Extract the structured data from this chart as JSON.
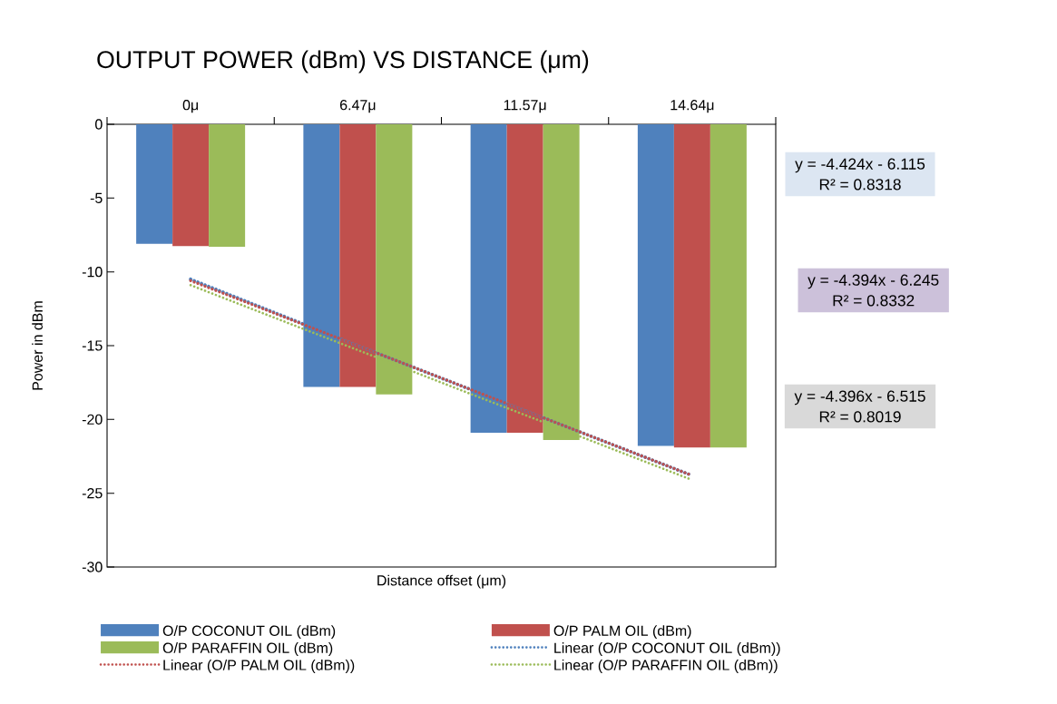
{
  "chart_data": {
    "type": "bar",
    "title": "OUTPUT POWER (dBm) VS DISTANCE (μm)",
    "xlabel": "Distance offset (μm)",
    "ylabel": "Power in dBm",
    "categories": [
      "0μ",
      "6.47μ",
      "11.57μ",
      "14.64μ"
    ],
    "series": [
      {
        "name": "O/P COCONUT OIL (dBm)",
        "color": "#4f81bd",
        "values": [
          -8.1,
          -17.8,
          -20.9,
          -21.8
        ]
      },
      {
        "name": "O/P PALM OIL (dBm)",
        "color": "#c0504d",
        "values": [
          -8.25,
          -17.8,
          -20.9,
          -21.9
        ]
      },
      {
        "name": "O/P PARAFFIN OIL (dBm)",
        "color": "#9bbb59",
        "values": [
          -8.3,
          -18.3,
          -21.4,
          -21.9
        ]
      },
      {
        "name": "Linear (O/P COCONUT OIL (dBm))",
        "type": "line",
        "line_style": "dotted",
        "color": "#4f81bd",
        "values": [
          -10.5,
          -15.0,
          -19.4,
          -23.8
        ]
      },
      {
        "name": "Linear (O/P PALM OIL (dBm))",
        "type": "line",
        "line_style": "dotted",
        "color": "#c0504d",
        "values": [
          -10.6,
          -15.0,
          -19.4,
          -23.8
        ]
      },
      {
        "name": "Linear (O/P PARAFFIN OIL (dBm))",
        "type": "line",
        "line_style": "dotted",
        "color": "#9bbb59",
        "values": [
          -10.9,
          -15.3,
          -19.7,
          -24.1
        ]
      }
    ],
    "ylim": [
      -30,
      0
    ],
    "yticks": [
      0,
      -5,
      -10,
      -15,
      -20,
      -25,
      -30
    ],
    "legend": "bottom",
    "marker": "none",
    "annotations": [
      "y = -4.424x - 6.115",
      "R² = 0.8318",
      "y = -4.394x - 6.245",
      "R² = 0.8332",
      "y = -4.396x - 6.515",
      "R² = 0.8019"
    ]
  }
}
